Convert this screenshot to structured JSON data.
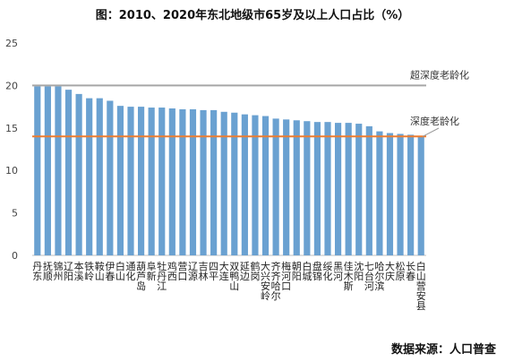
{
  "title": "图：2010、2020年东北地级市65岁及以上人口占比（%）",
  "source": "数据来源：人口普查",
  "colors": {
    "bar": "#6aa1d1",
    "bar_edge": "#ffffff",
    "super_line": "#a6a6a6",
    "deep_line": "#ed7d31",
    "axis": "#bfbfbf"
  },
  "chart_data": {
    "type": "bar",
    "title": "图：2010、2020年东北地级市65岁及以上人口占比（%）",
    "xlabel": "",
    "ylabel": "",
    "ylim": [
      0,
      25
    ],
    "yticks": [
      0,
      5,
      10,
      15,
      20,
      25
    ],
    "grid": false,
    "categories": [
      "丹东",
      "抚顺",
      "锦州",
      "辽阳",
      "本溪",
      "铁岭",
      "鞍山",
      "伊春",
      "白山",
      "通化",
      "葫芦岛",
      "阜新",
      "牡丹江",
      "鸡西",
      "营口",
      "辽源",
      "吉林",
      "四平",
      "大连",
      "双鸭山",
      "延边",
      "鹤岗",
      "大兴安岭",
      "齐齐哈尔",
      "梅河口",
      "朝阳",
      "白城",
      "盘锦",
      "绥化",
      "黑河",
      "佳木斯",
      "沈阳",
      "七台河",
      "哈尔滨",
      "大庆",
      "松原",
      "长春",
      "白山营安县"
    ],
    "values": [
      19.9,
      19.9,
      19.9,
      19.5,
      19.0,
      18.5,
      18.5,
      18.2,
      17.6,
      17.5,
      17.5,
      17.4,
      17.4,
      17.3,
      17.2,
      17.2,
      17.1,
      17.1,
      16.9,
      16.8,
      16.6,
      16.5,
      16.4,
      16.1,
      16.0,
      15.9,
      15.8,
      15.7,
      15.7,
      15.6,
      15.6,
      15.5,
      15.2,
      14.6,
      14.4,
      14.3,
      14.2,
      14.0
    ],
    "reference_lines": [
      {
        "label": "超深度老龄化",
        "value": 20
      },
      {
        "label": "深度老龄化",
        "value": 14
      }
    ]
  }
}
